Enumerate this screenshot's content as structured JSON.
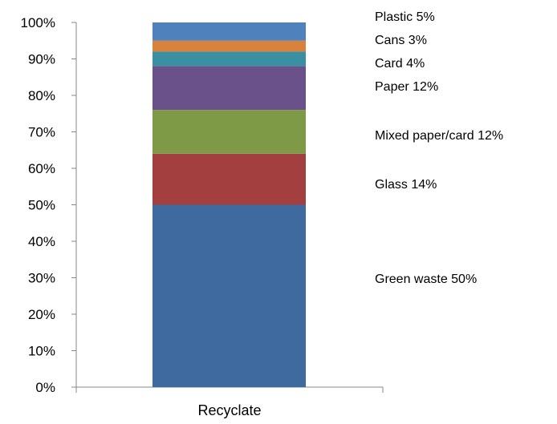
{
  "chart_data": {
    "type": "bar",
    "stacked": true,
    "categories": [
      "Recyclate"
    ],
    "series": [
      {
        "name": "Green waste 50%",
        "values": [
          50
        ],
        "color": "#3f6aa0"
      },
      {
        "name": "Glass 14%",
        "values": [
          14
        ],
        "color": "#a33f3e"
      },
      {
        "name": "Mixed paper/card 12%",
        "values": [
          12
        ],
        "color": "#7f9a46"
      },
      {
        "name": "Paper 12%",
        "values": [
          12
        ],
        "color": "#6a5189"
      },
      {
        "name": "Card 4%",
        "values": [
          4
        ],
        "color": "#3a8fa3"
      },
      {
        "name": "Cans 3%",
        "values": [
          3
        ],
        "color": "#d9823b"
      },
      {
        "name": "Plastic 5%",
        "values": [
          5
        ],
        "color": "#4f81bd"
      }
    ],
    "yticks": [
      "0%",
      "10%",
      "20%",
      "30%",
      "40%",
      "50%",
      "60%",
      "70%",
      "80%",
      "90%",
      "100%"
    ],
    "ylim": [
      0,
      100
    ],
    "legend_position": "right"
  }
}
